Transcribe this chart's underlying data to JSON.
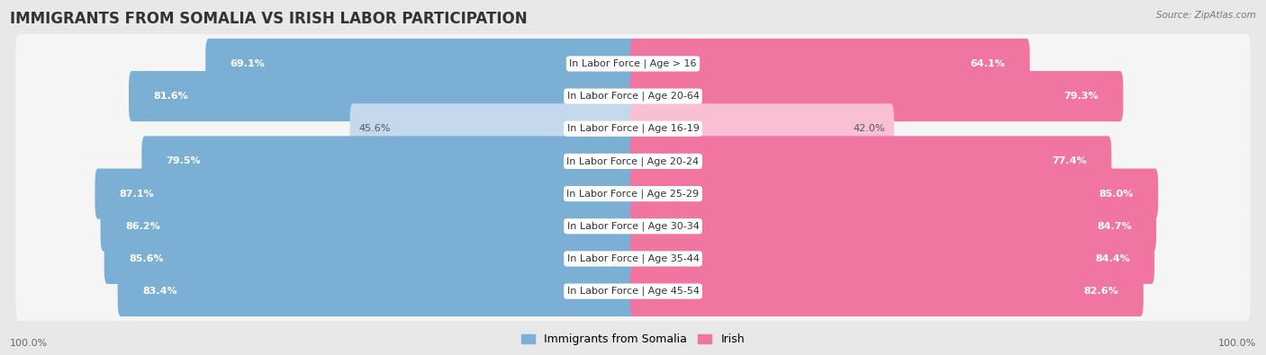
{
  "title": "IMMIGRANTS FROM SOMALIA VS IRISH LABOR PARTICIPATION",
  "source": "Source: ZipAtlas.com",
  "categories": [
    "In Labor Force | Age > 16",
    "In Labor Force | Age 20-64",
    "In Labor Force | Age 16-19",
    "In Labor Force | Age 20-24",
    "In Labor Force | Age 25-29",
    "In Labor Force | Age 30-34",
    "In Labor Force | Age 35-44",
    "In Labor Force | Age 45-54"
  ],
  "somalia_values": [
    69.1,
    81.6,
    45.6,
    79.5,
    87.1,
    86.2,
    85.6,
    83.4
  ],
  "irish_values": [
    64.1,
    79.3,
    42.0,
    77.4,
    85.0,
    84.7,
    84.4,
    82.6
  ],
  "somalia_color": "#7BAFD4",
  "somalia_color_light": "#C5D9ED",
  "irish_color": "#F075A0",
  "irish_color_light": "#F9C0D4",
  "background_color": "#e8e8e8",
  "row_bg_color": "#f5f5f5",
  "max_value": 100.0,
  "legend_somalia": "Immigrants from Somalia",
  "legend_irish": "Irish",
  "title_fontsize": 12,
  "label_fontsize": 8,
  "value_fontsize": 8,
  "axis_label_left": "100.0%",
  "axis_label_right": "100.0%"
}
